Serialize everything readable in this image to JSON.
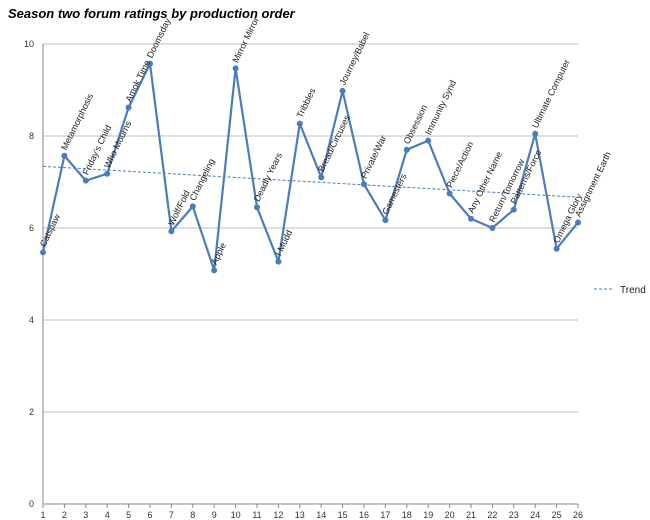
{
  "chart_data": {
    "type": "line",
    "title": "Season two forum ratings by production order",
    "xlabel": "",
    "ylabel": "",
    "xlim": [
      1,
      26
    ],
    "ylim": [
      0,
      10
    ],
    "yticks": [
      0,
      2,
      4,
      6,
      8,
      10
    ],
    "grid": true,
    "legend_position": "right",
    "series": [
      {
        "values": [
          5.47,
          7.57,
          7.03,
          7.18,
          8.62,
          9.57,
          5.93,
          6.47,
          5.08,
          9.47,
          6.45,
          5.27,
          8.27,
          7.1,
          8.98,
          6.95,
          6.17,
          7.7,
          7.9,
          6.75,
          6.2,
          6.0,
          6.4,
          8.05,
          5.55,
          6.12
        ],
        "labels": [
          "Catspaw",
          "Metamorphosis",
          "Friday's Child",
          "Who Mourns",
          "Amok Time",
          "Doomsday",
          "Wolf/Fold",
          "Changeling",
          "Apple",
          "Mirror Mirror",
          "Deadly Years",
          "I Mudd",
          "Tribbles",
          "Bread/Circuses",
          "Journey/Babel",
          "Private/War",
          "Gamesters",
          "Obsession",
          "Immunity Synd",
          "Piece/Action",
          "Any Other Name",
          "Return/Tomorrow",
          "Patterns/Force",
          "Ultimate Computer",
          "Omega Glory",
          "Assignment Earth"
        ],
        "color": "#4a7ebb"
      },
      {
        "name": "Trend",
        "type": "linear-trend",
        "start": 7.34,
        "end": 6.67,
        "color": "#4a7ebb"
      }
    ]
  }
}
